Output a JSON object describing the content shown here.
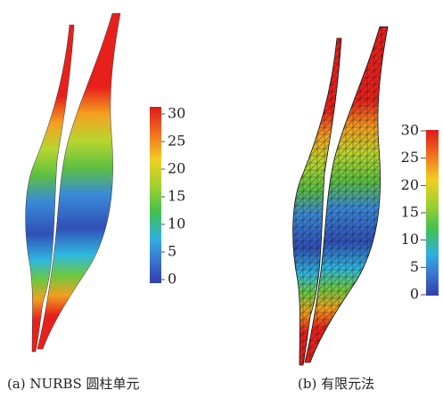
{
  "panels": [
    {
      "caption": "(a) NURBS 圆柱单元",
      "colorbar": {
        "ticks": [
          30,
          25,
          20,
          15,
          10,
          5,
          0
        ]
      }
    },
    {
      "caption": "(b) 有限元法",
      "colorbar": {
        "ticks": [
          30,
          25,
          20,
          15,
          10,
          5,
          0
        ]
      }
    }
  ]
}
